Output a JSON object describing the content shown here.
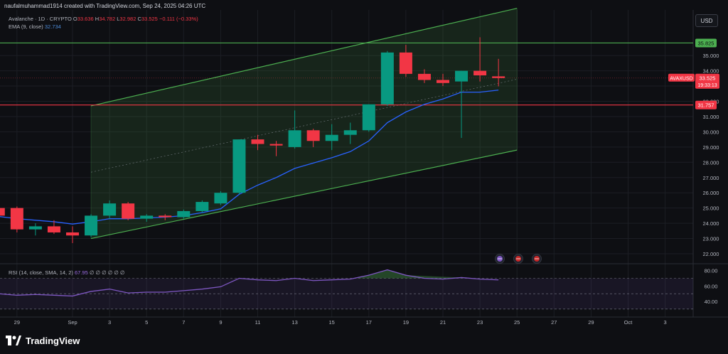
{
  "header": {
    "created_by": "naufalmuhammad1914 created with TradingView.com, Sep 24, 2025 04:26 UTC"
  },
  "legend": {
    "symbol": "Avalanche · 1D · CRYPTO",
    "open_label": "O",
    "open": "33.636",
    "high_label": "H",
    "high": "34.782",
    "low_label": "L",
    "low": "32.982",
    "close_label": "C",
    "close": "33.525",
    "change": "−0.111 (−0.33%)",
    "ema_label": "EMA (9, close)",
    "ema_value": "32.734",
    "rsi_label": "RSI (14, close, SMA, 14, 2)",
    "rsi_value": "67.95",
    "rsi_placeholders": "∅ ∅ ∅ ∅ ∅ ∅"
  },
  "currency_button": "USD",
  "price_labels": {
    "resistance": "35.825",
    "support": "31.757",
    "symbol_tag": "AVAXUSD",
    "last_price": "33.525",
    "countdown": "19:33:13"
  },
  "branding": "TradingView",
  "colors": {
    "up": "#089981",
    "down": "#f23645",
    "ema": "#2962ff",
    "rsi": "#7e57c2",
    "channel": "#4caf50",
    "support_line": "#f23645",
    "resistance_line": "#4caf50"
  },
  "chart_data": {
    "type": "candlestick",
    "symbol": "AVAXUSD",
    "timeframe": "1D",
    "price_axis": {
      "ticks": [
        22,
        23,
        24,
        25,
        26,
        27,
        28,
        29,
        30,
        31,
        32,
        33,
        34,
        35
      ],
      "tick_labels": [
        "22.000",
        "23.000",
        "24.000",
        "25.000",
        "26.000",
        "27.000",
        "28.000",
        "29.000",
        "30.000",
        "31.000",
        "32.000",
        "33.000",
        "34.000",
        "35.000"
      ]
    },
    "time_axis": {
      "labels": [
        "29",
        "Sep",
        "3",
        "5",
        "7",
        "9",
        "11",
        "13",
        "15",
        "17",
        "19",
        "21",
        "23",
        "25",
        "27",
        "29",
        "Oct",
        "3"
      ],
      "day_index": [
        -3,
        0,
        2,
        4,
        6,
        8,
        10,
        12,
        14,
        16,
        18,
        20,
        22,
        24,
        26,
        28,
        30,
        32
      ]
    },
    "candles": [
      {
        "d": -4,
        "o": 25.0,
        "h": 25.3,
        "l": 24.3,
        "c": 24.5
      },
      {
        "d": -3,
        "o": 25.0,
        "h": 25.1,
        "l": 23.4,
        "c": 23.6
      },
      {
        "d": -2,
        "o": 23.6,
        "h": 24.0,
        "l": 23.2,
        "c": 23.8
      },
      {
        "d": -1,
        "o": 23.8,
        "h": 24.2,
        "l": 23.3,
        "c": 23.4
      },
      {
        "d": 0,
        "o": 23.4,
        "h": 23.8,
        "l": 22.7,
        "c": 23.2
      },
      {
        "d": 1,
        "o": 23.2,
        "h": 24.6,
        "l": 23.1,
        "c": 24.5
      },
      {
        "d": 2,
        "o": 24.5,
        "h": 25.5,
        "l": 24.3,
        "c": 25.3
      },
      {
        "d": 3,
        "o": 25.3,
        "h": 25.4,
        "l": 24.2,
        "c": 24.3
      },
      {
        "d": 4,
        "o": 24.3,
        "h": 24.6,
        "l": 24.1,
        "c": 24.5
      },
      {
        "d": 5,
        "o": 24.5,
        "h": 24.6,
        "l": 24.2,
        "c": 24.4
      },
      {
        "d": 6,
        "o": 24.4,
        "h": 24.9,
        "l": 24.3,
        "c": 24.8
      },
      {
        "d": 7,
        "o": 24.8,
        "h": 25.5,
        "l": 24.7,
        "c": 25.4
      },
      {
        "d": 8,
        "o": 25.3,
        "h": 26.1,
        "l": 25.2,
        "c": 26.0
      },
      {
        "d": 9,
        "o": 26.0,
        "h": 29.5,
        "l": 25.9,
        "c": 29.5
      },
      {
        "d": 10,
        "o": 29.5,
        "h": 29.8,
        "l": 28.8,
        "c": 29.2
      },
      {
        "d": 11,
        "o": 29.2,
        "h": 29.4,
        "l": 28.4,
        "c": 29.1
      },
      {
        "d": 12,
        "o": 29.0,
        "h": 31.4,
        "l": 28.9,
        "c": 30.1
      },
      {
        "d": 13,
        "o": 30.1,
        "h": 30.2,
        "l": 29.0,
        "c": 29.4
      },
      {
        "d": 14,
        "o": 29.4,
        "h": 30.5,
        "l": 28.8,
        "c": 29.8
      },
      {
        "d": 15,
        "o": 29.8,
        "h": 30.6,
        "l": 29.2,
        "c": 30.1
      },
      {
        "d": 16,
        "o": 30.1,
        "h": 31.8,
        "l": 30.0,
        "c": 31.8
      },
      {
        "d": 17,
        "o": 31.8,
        "h": 35.3,
        "l": 31.7,
        "c": 35.2
      },
      {
        "d": 18,
        "o": 35.2,
        "h": 35.7,
        "l": 33.6,
        "c": 33.8
      },
      {
        "d": 19,
        "o": 33.8,
        "h": 34.1,
        "l": 33.2,
        "c": 33.4
      },
      {
        "d": 20,
        "o": 33.4,
        "h": 33.8,
        "l": 33.0,
        "c": 33.2
      },
      {
        "d": 21,
        "o": 33.3,
        "h": 34.0,
        "l": 29.6,
        "c": 34.0
      },
      {
        "d": 22,
        "o": 34.0,
        "h": 36.2,
        "l": 33.3,
        "c": 33.7
      },
      {
        "d": 23,
        "o": 33.636,
        "h": 34.782,
        "l": 32.982,
        "c": 33.525
      }
    ],
    "ema_9": [
      {
        "d": -4,
        "v": 24.45
      },
      {
        "d": -3,
        "v": 24.3
      },
      {
        "d": -2,
        "v": 24.2
      },
      {
        "d": -1,
        "v": 24.1
      },
      {
        "d": 0,
        "v": 23.95
      },
      {
        "d": 1,
        "v": 24.1
      },
      {
        "d": 2,
        "v": 24.3
      },
      {
        "d": 3,
        "v": 24.3
      },
      {
        "d": 4,
        "v": 24.35
      },
      {
        "d": 5,
        "v": 24.4
      },
      {
        "d": 6,
        "v": 24.5
      },
      {
        "d": 7,
        "v": 24.7
      },
      {
        "d": 8,
        "v": 24.95
      },
      {
        "d": 9,
        "v": 25.9
      },
      {
        "d": 10,
        "v": 26.5
      },
      {
        "d": 11,
        "v": 27.0
      },
      {
        "d": 12,
        "v": 27.6
      },
      {
        "d": 13,
        "v": 27.95
      },
      {
        "d": 14,
        "v": 28.3
      },
      {
        "d": 15,
        "v": 28.7
      },
      {
        "d": 16,
        "v": 29.4
      },
      {
        "d": 17,
        "v": 30.6
      },
      {
        "d": 18,
        "v": 31.3
      },
      {
        "d": 19,
        "v": 31.8
      },
      {
        "d": 20,
        "v": 32.15
      },
      {
        "d": 21,
        "v": 32.6
      },
      {
        "d": 22,
        "v": 32.6
      },
      {
        "d": 23,
        "v": 32.734
      }
    ],
    "rsi": {
      "axis_ticks": [
        40,
        60,
        80
      ],
      "tick_labels": [
        "40.00",
        "60.00",
        "80.00"
      ],
      "band": [
        30,
        70
      ],
      "values": [
        {
          "d": -4,
          "v": 50
        },
        {
          "d": -3,
          "v": 48
        },
        {
          "d": -2,
          "v": 49
        },
        {
          "d": -1,
          "v": 48
        },
        {
          "d": 0,
          "v": 47
        },
        {
          "d": 1,
          "v": 53
        },
        {
          "d": 2,
          "v": 56
        },
        {
          "d": 3,
          "v": 51
        },
        {
          "d": 4,
          "v": 52
        },
        {
          "d": 5,
          "v": 52
        },
        {
          "d": 6,
          "v": 54
        },
        {
          "d": 7,
          "v": 56
        },
        {
          "d": 8,
          "v": 59
        },
        {
          "d": 9,
          "v": 70
        },
        {
          "d": 10,
          "v": 68
        },
        {
          "d": 11,
          "v": 67
        },
        {
          "d": 12,
          "v": 70
        },
        {
          "d": 13,
          "v": 67
        },
        {
          "d": 14,
          "v": 68
        },
        {
          "d": 15,
          "v": 69
        },
        {
          "d": 16,
          "v": 74
        },
        {
          "d": 17,
          "v": 81
        },
        {
          "d": 18,
          "v": 74
        },
        {
          "d": 19,
          "v": 70
        },
        {
          "d": 20,
          "v": 69
        },
        {
          "d": 21,
          "v": 71
        },
        {
          "d": 22,
          "v": 69
        },
        {
          "d": 23,
          "v": 67.95
        }
      ]
    },
    "drawings": {
      "resistance_level": 35.825,
      "support_level": 31.757,
      "channel_upper": [
        {
          "d": 1,
          "v": 31.7
        },
        {
          "d": 24,
          "v": 38.1
        }
      ],
      "channel_lower": [
        {
          "d": 1,
          "v": 23.0
        },
        {
          "d": 24,
          "v": 28.8
        }
      ]
    },
    "grid": true
  }
}
